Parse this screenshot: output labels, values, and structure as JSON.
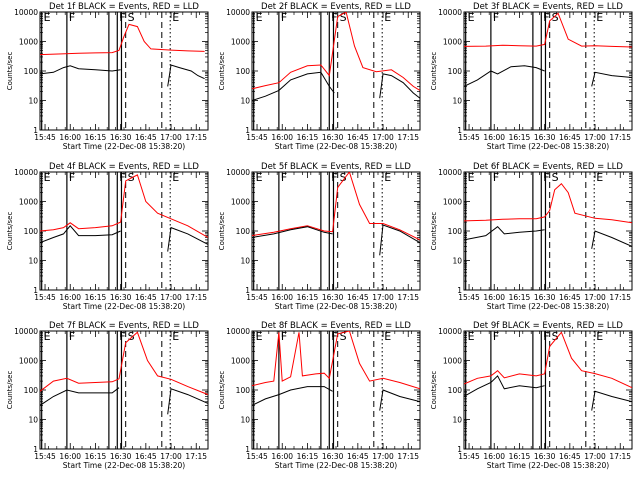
{
  "figure": {
    "panel_titles": [
      "Det 1f BLACK = Events, RED = LLD",
      "Det 2f BLACK = Events, RED = LLD",
      "Det 3f BLACK = Events, RED = LLD",
      "Det 4f BLACK = Events, RED = LLD",
      "Det 5f BLACK = Events, RED = LLD",
      "Det 6f BLACK = Events, RED = LLD",
      "Det 7f BLACK = Events, RED = LLD",
      "Det 8f BLACK = Events, RED = LLD",
      "Det 9f BLACK = Events, RED = LLD"
    ],
    "xlabel": "Start Time (22-Dec-08 15:38:20)",
    "ylabel": "Counts/sec",
    "colors": {
      "events": "#000000",
      "lld": "#ff0000",
      "axes": "#000000"
    }
  },
  "chart_data": {
    "type": "line",
    "layout": "3x3 grid",
    "yscale": "log",
    "ylim": [
      1,
      10000
    ],
    "yticks": [
      "1",
      "10",
      "100",
      "1000",
      "10000"
    ],
    "xlim_min": [
      942,
      1042
    ],
    "xticks_min": [
      945,
      960,
      975,
      990,
      1005,
      1020,
      1035
    ],
    "xtick_labels": [
      "15:45",
      "16:00",
      "16:15",
      "16:30",
      "16:45",
      "17:00",
      "17:15"
    ],
    "event_lines": [
      {
        "min": 943,
        "style": "solid",
        "label": "E"
      },
      {
        "min": 958,
        "style": "solid",
        "label": "F"
      },
      {
        "min": 983,
        "style": "solid",
        "label": ""
      },
      {
        "min": 988,
        "style": "solid",
        "label": "F"
      },
      {
        "min": 990.5,
        "style": "solid",
        "label": ""
      },
      {
        "min": 993,
        "style": "dashed",
        "label": "S"
      },
      {
        "min": 1014.5,
        "style": "dashed",
        "label": ""
      },
      {
        "min": 1019.5,
        "style": "dotted",
        "label": "E"
      }
    ],
    "series_names": [
      "Events",
      "LLD"
    ],
    "panels": [
      {
        "id": 1,
        "lld": [
          [
            942,
            360
          ],
          [
            955,
            380
          ],
          [
            965,
            400
          ],
          [
            975,
            410
          ],
          [
            985,
            420
          ],
          [
            989,
            500
          ],
          [
            992,
            1500
          ],
          [
            995,
            3800
          ],
          [
            1000,
            3200
          ],
          [
            1004,
            1000
          ],
          [
            1008,
            560
          ],
          [
            1020,
            510
          ],
          [
            1030,
            480
          ],
          [
            1040,
            460
          ]
        ],
        "events": [
          [
            942,
            80
          ],
          [
            950,
            90
          ],
          [
            956,
            130
          ],
          [
            960,
            150
          ],
          [
            965,
            120
          ],
          [
            975,
            110
          ],
          [
            985,
            100
          ],
          [
            990,
            110
          ],
          [
            995,
            null
          ],
          [
            1017,
            null
          ],
          [
            1018,
            30
          ],
          [
            1020,
            160
          ],
          [
            1025,
            130
          ],
          [
            1032,
            100
          ],
          [
            1036,
            70
          ],
          [
            1040,
            55
          ]
        ]
      },
      {
        "id": 2,
        "lld": [
          [
            942,
            25
          ],
          [
            950,
            32
          ],
          [
            958,
            40
          ],
          [
            965,
            90
          ],
          [
            975,
            150
          ],
          [
            983,
            160
          ],
          [
            988,
            70
          ],
          [
            993,
            7000
          ],
          [
            998,
            10000
          ],
          [
            1003,
            700
          ],
          [
            1008,
            130
          ],
          [
            1016,
            95
          ],
          [
            1025,
            110
          ],
          [
            1032,
            60
          ],
          [
            1038,
            30
          ],
          [
            1042,
            22
          ]
        ],
        "events": [
          [
            942,
            10
          ],
          [
            950,
            14
          ],
          [
            958,
            22
          ],
          [
            965,
            50
          ],
          [
            975,
            80
          ],
          [
            983,
            90
          ],
          [
            988,
            30
          ],
          [
            991,
            18
          ],
          [
            993,
            null
          ],
          [
            1017,
            null
          ],
          [
            1018,
            12
          ],
          [
            1020,
            80
          ],
          [
            1025,
            70
          ],
          [
            1032,
            40
          ],
          [
            1038,
            18
          ],
          [
            1042,
            12
          ]
        ]
      },
      {
        "id": 3,
        "lld": [
          [
            942,
            680
          ],
          [
            955,
            700
          ],
          [
            965,
            750
          ],
          [
            975,
            720
          ],
          [
            985,
            700
          ],
          [
            990,
            800
          ],
          [
            993,
            5000
          ],
          [
            998,
            9000
          ],
          [
            1004,
            1200
          ],
          [
            1012,
            700
          ],
          [
            1020,
            720
          ],
          [
            1030,
            680
          ],
          [
            1042,
            650
          ]
        ],
        "events": [
          [
            942,
            30
          ],
          [
            950,
            50
          ],
          [
            958,
            100
          ],
          [
            962,
            80
          ],
          [
            970,
            140
          ],
          [
            978,
            150
          ],
          [
            985,
            130
          ],
          [
            990,
            100
          ],
          [
            993,
            null
          ],
          [
            1017,
            null
          ],
          [
            1018,
            30
          ],
          [
            1020,
            90
          ],
          [
            1030,
            70
          ],
          [
            1042,
            60
          ]
        ]
      },
      {
        "id": 4,
        "lld": [
          [
            942,
            100
          ],
          [
            950,
            110
          ],
          [
            956,
            130
          ],
          [
            960,
            190
          ],
          [
            965,
            120
          ],
          [
            975,
            130
          ],
          [
            985,
            150
          ],
          [
            990,
            200
          ],
          [
            993,
            5000
          ],
          [
            1000,
            8000
          ],
          [
            1005,
            1000
          ],
          [
            1012,
            400
          ],
          [
            1020,
            260
          ],
          [
            1030,
            150
          ],
          [
            1042,
            60
          ]
        ],
        "events": [
          [
            942,
            40
          ],
          [
            950,
            60
          ],
          [
            956,
            80
          ],
          [
            960,
            150
          ],
          [
            965,
            70
          ],
          [
            975,
            70
          ],
          [
            985,
            75
          ],
          [
            990,
            100
          ],
          [
            993,
            null
          ],
          [
            1017,
            null
          ],
          [
            1018,
            20
          ],
          [
            1020,
            130
          ],
          [
            1030,
            80
          ],
          [
            1042,
            35
          ]
        ]
      },
      {
        "id": 5,
        "lld": [
          [
            942,
            70
          ],
          [
            955,
            90
          ],
          [
            965,
            120
          ],
          [
            975,
            150
          ],
          [
            985,
            100
          ],
          [
            990,
            95
          ],
          [
            993,
            3000
          ],
          [
            1000,
            10000
          ],
          [
            1006,
            800
          ],
          [
            1012,
            180
          ],
          [
            1020,
            180
          ],
          [
            1030,
            110
          ],
          [
            1042,
            50
          ]
        ],
        "events": [
          [
            942,
            60
          ],
          [
            955,
            80
          ],
          [
            965,
            110
          ],
          [
            975,
            140
          ],
          [
            985,
            90
          ],
          [
            990,
            80
          ],
          [
            993,
            null
          ],
          [
            1017,
            null
          ],
          [
            1018,
            15
          ],
          [
            1020,
            160
          ],
          [
            1030,
            100
          ],
          [
            1042,
            40
          ]
        ]
      },
      {
        "id": 6,
        "lld": [
          [
            942,
            220
          ],
          [
            955,
            230
          ],
          [
            965,
            250
          ],
          [
            975,
            260
          ],
          [
            985,
            260
          ],
          [
            990,
            300
          ],
          [
            993,
            500
          ],
          [
            996,
            2500
          ],
          [
            1000,
            4000
          ],
          [
            1004,
            2000
          ],
          [
            1008,
            400
          ],
          [
            1020,
            270
          ],
          [
            1030,
            240
          ],
          [
            1042,
            190
          ]
        ],
        "events": [
          [
            942,
            50
          ],
          [
            955,
            70
          ],
          [
            962,
            140
          ],
          [
            966,
            80
          ],
          [
            975,
            90
          ],
          [
            985,
            100
          ],
          [
            990,
            110
          ],
          [
            993,
            null
          ],
          [
            1017,
            null
          ],
          [
            1018,
            25
          ],
          [
            1020,
            100
          ],
          [
            1030,
            60
          ],
          [
            1042,
            30
          ]
        ]
      },
      {
        "id": 7,
        "lld": [
          [
            942,
            90
          ],
          [
            950,
            200
          ],
          [
            958,
            250
          ],
          [
            965,
            170
          ],
          [
            975,
            180
          ],
          [
            985,
            190
          ],
          [
            989,
            240
          ],
          [
            993,
            4000
          ],
          [
            1000,
            9000
          ],
          [
            1006,
            1000
          ],
          [
            1012,
            300
          ],
          [
            1020,
            230
          ],
          [
            1030,
            130
          ],
          [
            1042,
            70
          ]
        ],
        "events": [
          [
            942,
            30
          ],
          [
            950,
            60
          ],
          [
            958,
            100
          ],
          [
            965,
            80
          ],
          [
            975,
            80
          ],
          [
            985,
            80
          ],
          [
            989,
            120
          ],
          [
            993,
            null
          ],
          [
            1017,
            null
          ],
          [
            1018,
            15
          ],
          [
            1020,
            110
          ],
          [
            1030,
            70
          ],
          [
            1042,
            35
          ]
        ]
      },
      {
        "id": 8,
        "lld": [
          [
            942,
            140
          ],
          [
            950,
            180
          ],
          [
            955,
            200
          ],
          [
            958,
            9000
          ],
          [
            960,
            200
          ],
          [
            965,
            280
          ],
          [
            970,
            9000
          ],
          [
            972,
            300
          ],
          [
            980,
            350
          ],
          [
            985,
            370
          ],
          [
            988,
            250
          ],
          [
            993,
            8000
          ],
          [
            1000,
            10000
          ],
          [
            1006,
            800
          ],
          [
            1012,
            200
          ],
          [
            1020,
            250
          ],
          [
            1030,
            180
          ],
          [
            1042,
            110
          ]
        ],
        "events": [
          [
            942,
            30
          ],
          [
            950,
            50
          ],
          [
            958,
            70
          ],
          [
            965,
            100
          ],
          [
            975,
            130
          ],
          [
            985,
            130
          ],
          [
            990,
            90
          ],
          [
            993,
            null
          ],
          [
            1017,
            null
          ],
          [
            1018,
            20
          ],
          [
            1020,
            100
          ],
          [
            1030,
            60
          ],
          [
            1042,
            40
          ]
        ]
      },
      {
        "id": 9,
        "lld": [
          [
            942,
            160
          ],
          [
            950,
            250
          ],
          [
            958,
            300
          ],
          [
            962,
            450
          ],
          [
            966,
            260
          ],
          [
            975,
            350
          ],
          [
            985,
            300
          ],
          [
            990,
            350
          ],
          [
            993,
            3000
          ],
          [
            1000,
            9000
          ],
          [
            1006,
            1200
          ],
          [
            1012,
            450
          ],
          [
            1020,
            360
          ],
          [
            1030,
            250
          ],
          [
            1042,
            120
          ]
        ],
        "events": [
          [
            942,
            60
          ],
          [
            950,
            110
          ],
          [
            958,
            180
          ],
          [
            962,
            300
          ],
          [
            966,
            110
          ],
          [
            975,
            140
          ],
          [
            985,
            120
          ],
          [
            990,
            140
          ],
          [
            993,
            null
          ],
          [
            1017,
            null
          ],
          [
            1018,
            20
          ],
          [
            1020,
            90
          ],
          [
            1030,
            60
          ],
          [
            1042,
            40
          ]
        ]
      }
    ]
  }
}
